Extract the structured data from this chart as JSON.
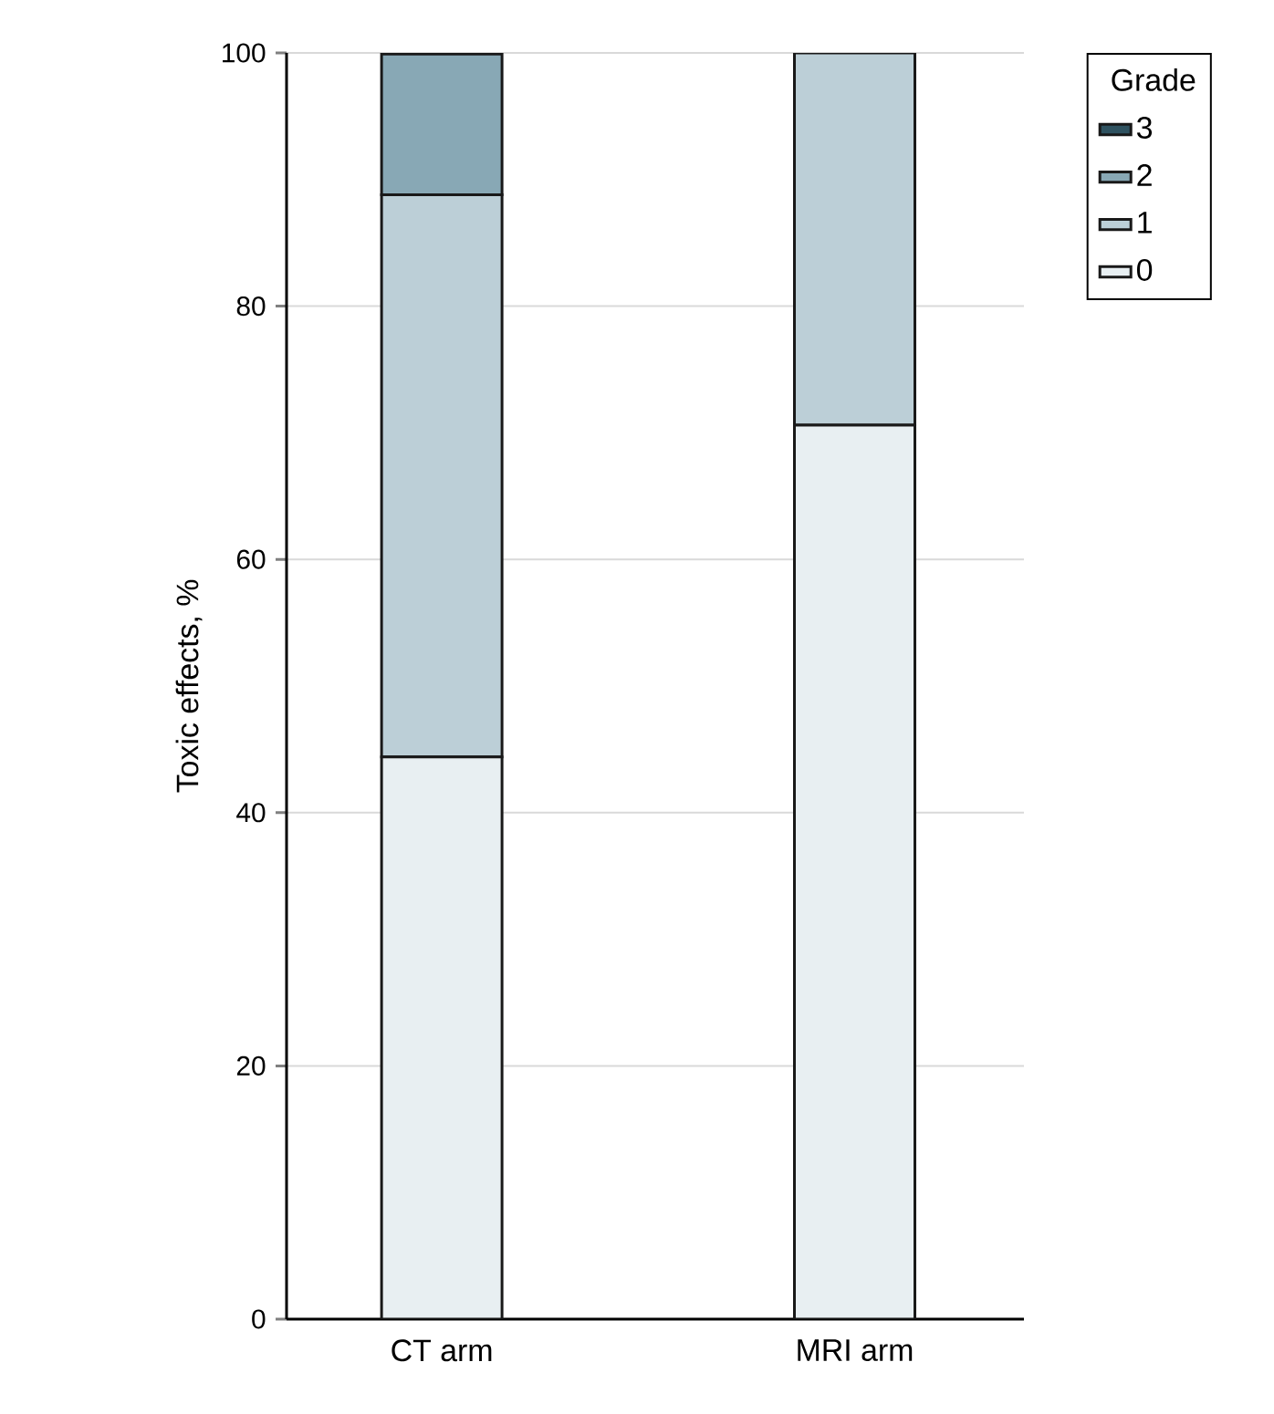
{
  "chart_data": {
    "type": "bar",
    "stacked": true,
    "ylabel": "Toxic effects, %",
    "legend_title": "Grade",
    "categories": [
      "CT arm",
      "MRI arm"
    ],
    "series": [
      {
        "name": "0",
        "color": "#e8eff2",
        "values": [
          44.4,
          70.6
        ]
      },
      {
        "name": "1",
        "color": "#bccfd7",
        "values": [
          44.4,
          29.4
        ]
      },
      {
        "name": "2",
        "color": "#88a8b5",
        "values": [
          11.1,
          0
        ]
      },
      {
        "name": "3",
        "color": "#2f5260",
        "values": [
          0,
          0
        ]
      }
    ],
    "ylim": [
      0,
      100
    ],
    "yticks": [
      0,
      20,
      40,
      60,
      80,
      100
    ],
    "grid": "y",
    "legend": "top right"
  }
}
